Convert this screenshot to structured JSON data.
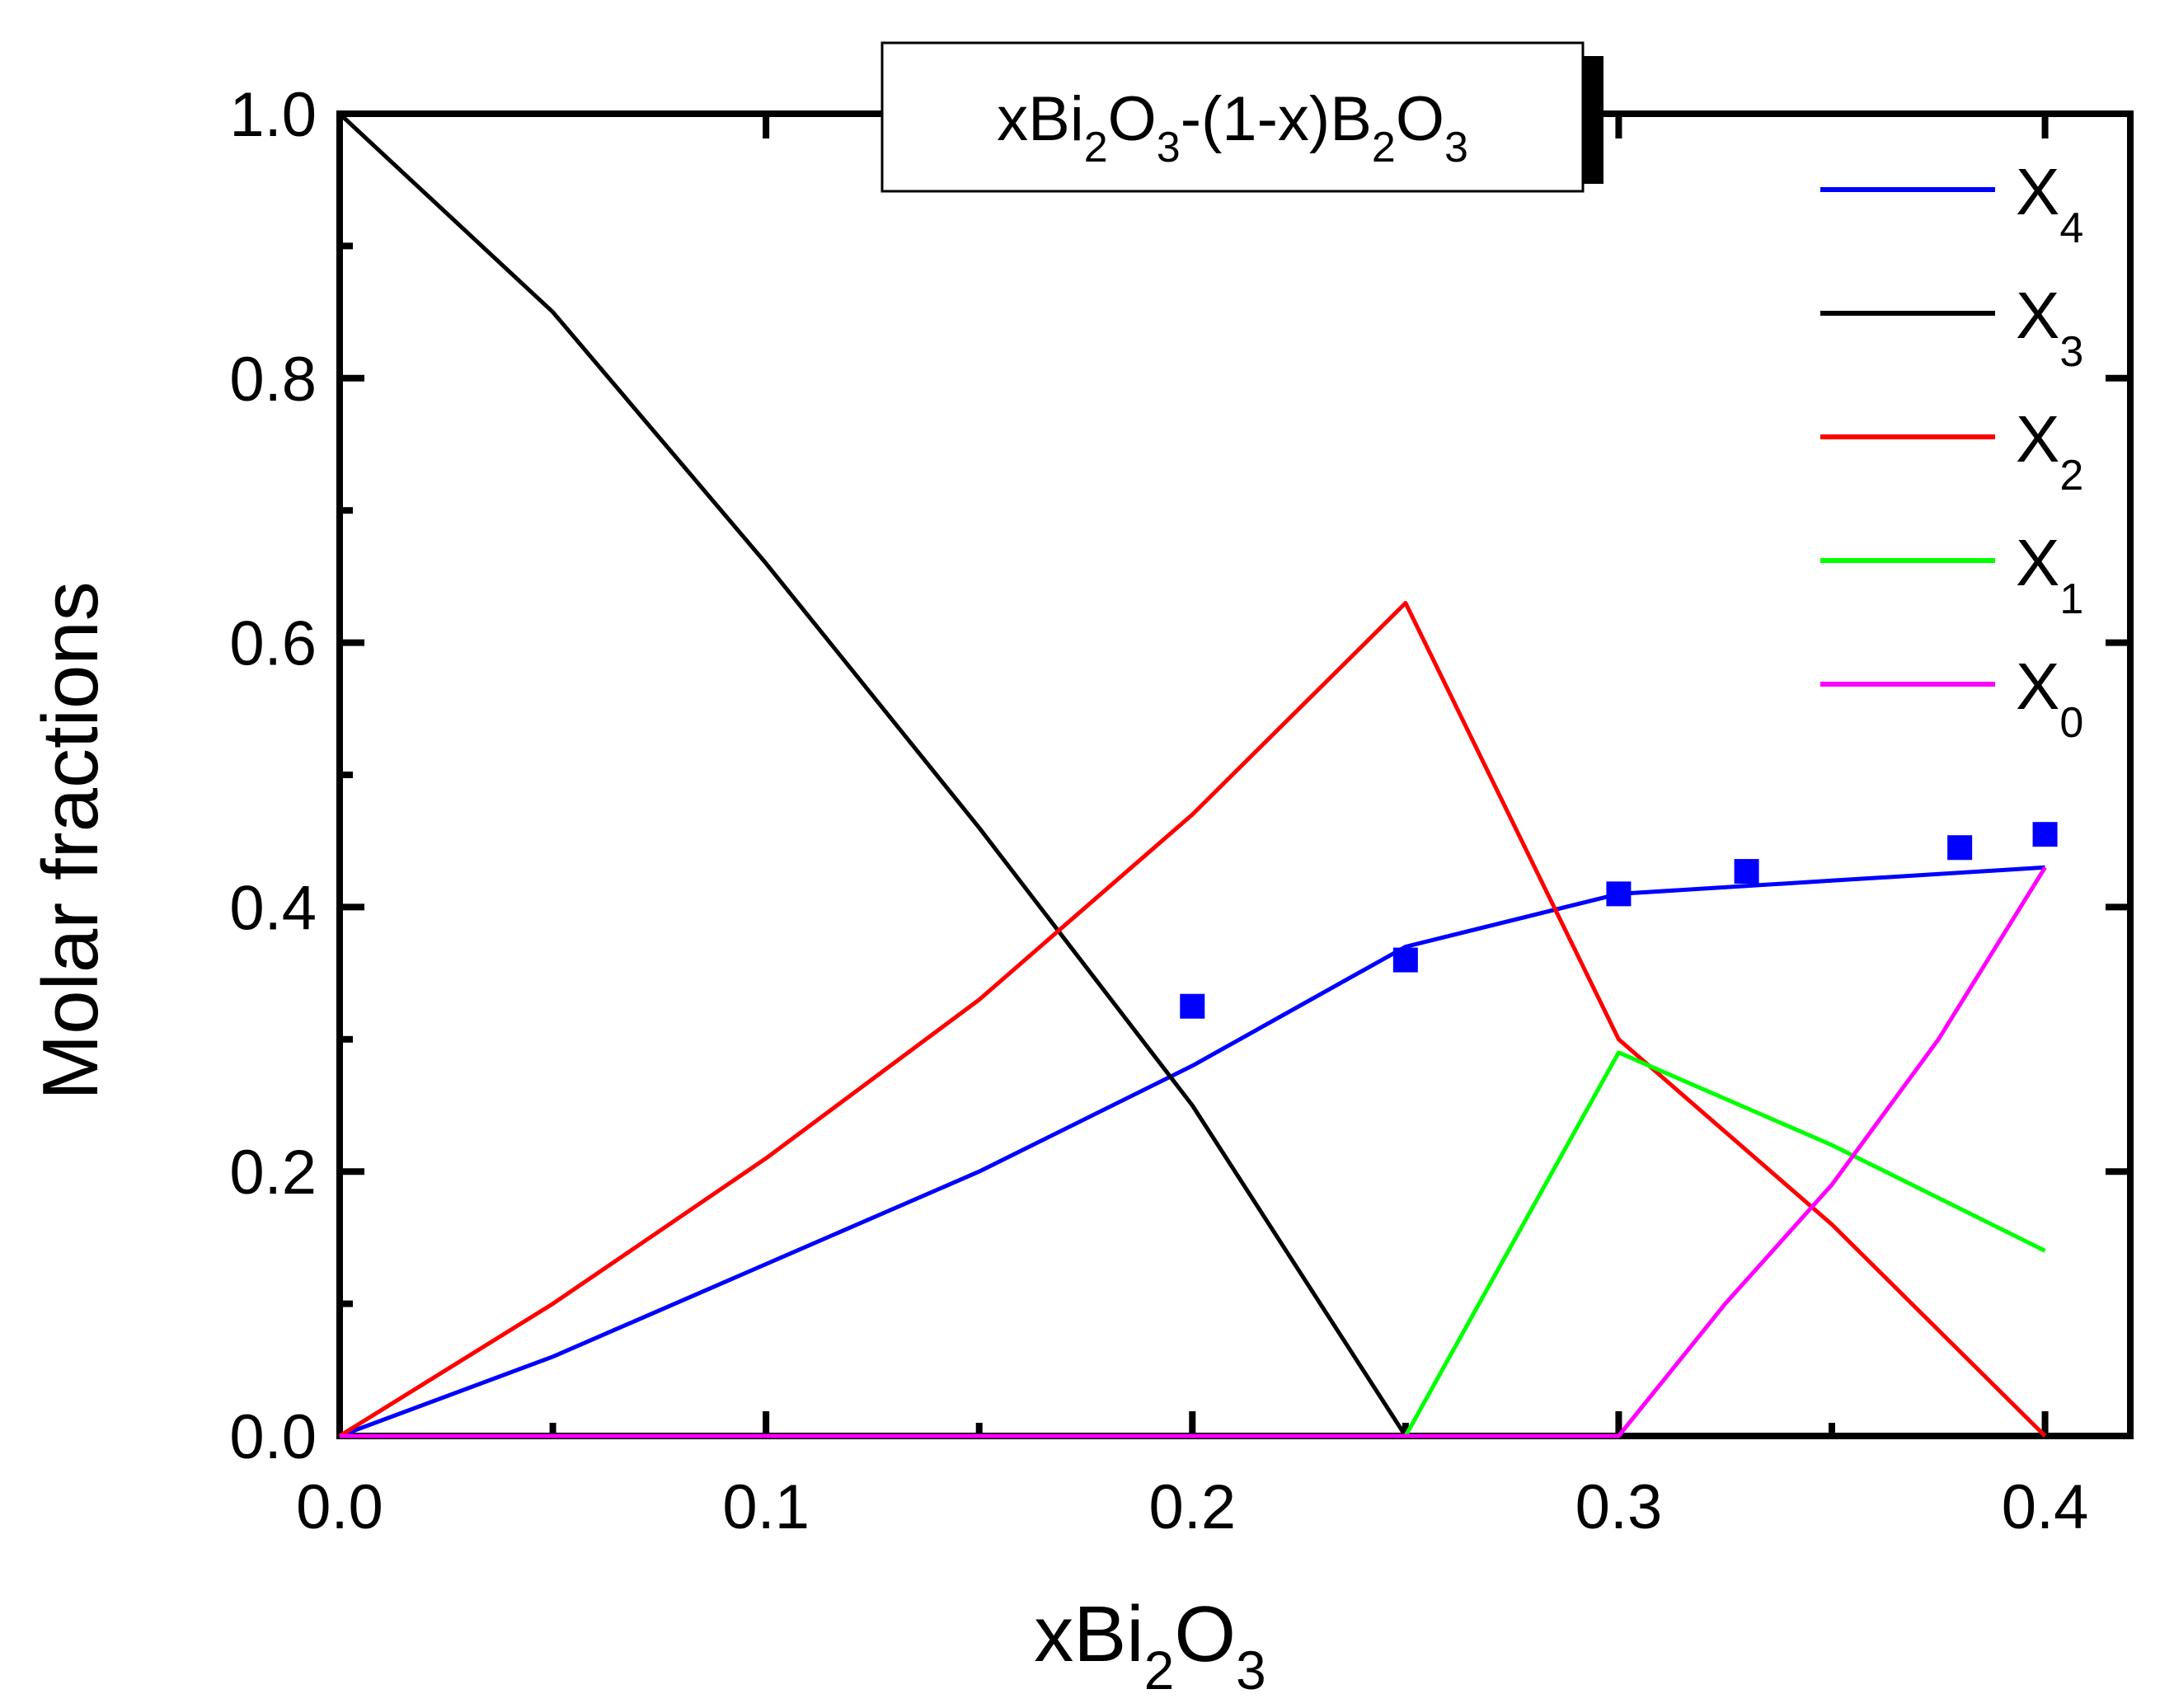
{
  "chart_data": {
    "type": "line",
    "title": {
      "text": "xBi",
      "sub1": "2",
      "mid1": "O",
      "sub2": "3",
      "mid2": "-(1-x)B",
      "sub3": "2",
      "mid3": "O",
      "sub4": "3"
    },
    "xlabel": {
      "text": "xBi",
      "sub1": "2",
      "mid1": "O",
      "sub2": "3"
    },
    "ylabel": "Molar fractions",
    "xlim": [
      0.0,
      0.42
    ],
    "ylim": [
      0.0,
      1.0
    ],
    "xticks": [
      "0.0",
      "0.1",
      "0.2",
      "0.3",
      "0.4"
    ],
    "yticks": [
      "0.0",
      "0.2",
      "0.4",
      "0.6",
      "0.8",
      "1.0"
    ],
    "grid": false,
    "legend_position": "top-right",
    "series": [
      {
        "name": "X",
        "sub": "4",
        "color": "#0000ff",
        "x": [
          0,
          0.05,
          0.1,
          0.15,
          0.2,
          0.25,
          0.3,
          0.35,
          0.4
        ],
        "y": [
          0,
          0.06,
          0.13,
          0.2,
          0.28,
          0.37,
          0.41,
          0.42,
          0.43
        ]
      },
      {
        "name": "X",
        "sub": "3",
        "color": "#000000",
        "x": [
          0,
          0.05,
          0.1,
          0.15,
          0.2,
          0.25,
          0.3,
          0.35,
          0.4
        ],
        "y": [
          1.0,
          0.85,
          0.66,
          0.46,
          0.25,
          0,
          0,
          0,
          0
        ]
      },
      {
        "name": "X",
        "sub": "2",
        "color": "#ff0000",
        "x": [
          0,
          0.05,
          0.1,
          0.15,
          0.2,
          0.25,
          0.3,
          0.35,
          0.4
        ],
        "y": [
          0,
          0.1,
          0.21,
          0.33,
          0.47,
          0.63,
          0.3,
          0.16,
          0
        ]
      },
      {
        "name": "X",
        "sub": "1",
        "color": "#00ff00",
        "x": [
          0,
          0.25,
          0.3,
          0.35,
          0.4
        ],
        "y": [
          0,
          0,
          0.29,
          0.22,
          0.14
        ]
      },
      {
        "name": "X",
        "sub": "0",
        "color": "#ff00ff",
        "x": [
          0,
          0.3,
          0.325,
          0.35,
          0.375,
          0.4
        ],
        "y": [
          0,
          0,
          0.1,
          0.19,
          0.3,
          0.43
        ]
      }
    ],
    "markers": {
      "color": "#0000ff",
      "x": [
        0.2,
        0.25,
        0.3,
        0.33,
        0.38,
        0.4
      ],
      "y": [
        0.325,
        0.36,
        0.41,
        0.427,
        0.445,
        0.455
      ]
    }
  }
}
